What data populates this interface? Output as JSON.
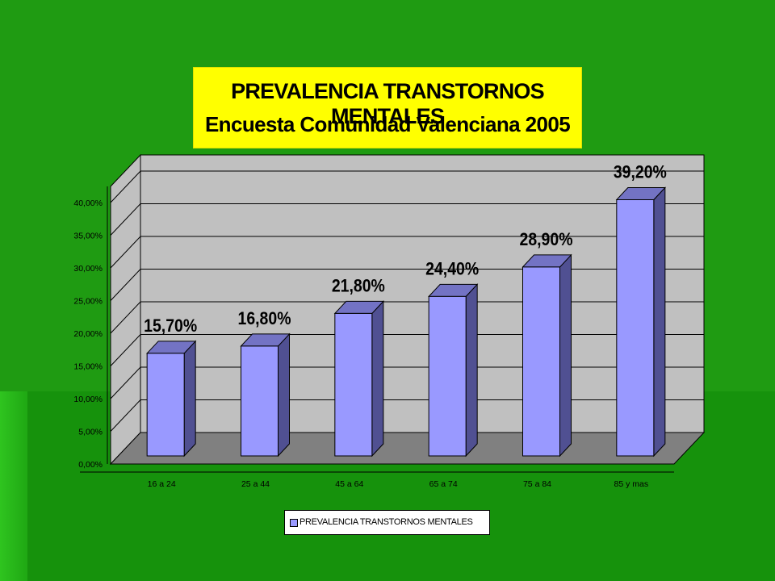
{
  "title_box": {
    "line1": "PREVALENCIA TRANSTORNOS  MENTALES",
    "line2": "Encuesta Comunidad Valenciana 2005"
  },
  "colors": {
    "background": "#1f9b12",
    "title_box": "#ffff00",
    "bar_front": "#9999ff",
    "bar_side": "#505092",
    "bar_top": "#7373c4",
    "chart_wall": "#c0c0c0",
    "chart_floor": "#808080"
  },
  "chart_data": {
    "type": "bar",
    "title": "",
    "xlabel": "",
    "ylabel": "",
    "categories": [
      "16 a 24",
      "25 a 44",
      "45 a 64",
      "65 a 74",
      "75 a 84",
      "85 y mas"
    ],
    "series": [
      {
        "name": "PREVALENCIA TRANSTORNOS  MENTALES",
        "values": [
          15.7,
          16.8,
          21.8,
          24.4,
          28.9,
          39.2
        ]
      }
    ],
    "data_labels": [
      "15,70%",
      "16,80%",
      "21,80%",
      "24,40%",
      "28,90%",
      "39,20%"
    ],
    "y_ticks": [
      "0,00%",
      "5,00%",
      "10,00%",
      "15,00%",
      "20,00%",
      "25,00%",
      "30,00%",
      "35,00%",
      "40,00%"
    ],
    "ylim": [
      0,
      40
    ],
    "grid": true,
    "three_d": true,
    "legend_position": "bottom"
  }
}
